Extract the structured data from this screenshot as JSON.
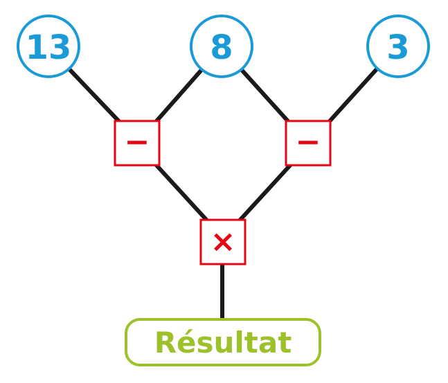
{
  "diagram": {
    "inputs": [
      {
        "id": "n13",
        "value": "13"
      },
      {
        "id": "n8",
        "value": "8"
      },
      {
        "id": "n3",
        "value": "3"
      }
    ],
    "operations": [
      {
        "id": "op-left",
        "symbol": "−",
        "operands": [
          "13",
          "8"
        ]
      },
      {
        "id": "op-right",
        "symbol": "−",
        "operands": [
          "8",
          "3"
        ]
      },
      {
        "id": "op-bottom",
        "symbol": "×",
        "operands": [
          "op-left",
          "op-right"
        ]
      }
    ],
    "result_label": "Résultat"
  },
  "colors": {
    "circle": "#1a9ad6",
    "operation": "#e30613",
    "result": "#9dc12a",
    "edges": "#1a1a1a"
  }
}
